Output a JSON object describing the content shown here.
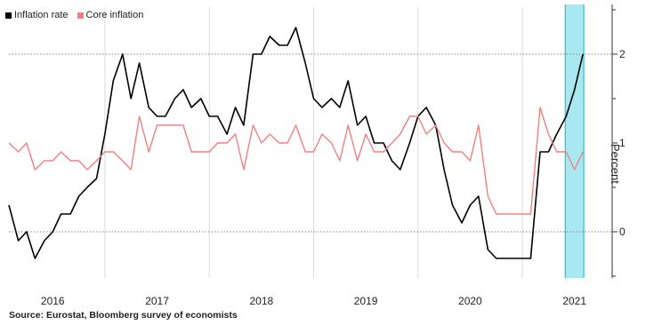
{
  "chart_data": {
    "type": "line",
    "title": "",
    "ylabel": "Percent",
    "xlabel": "",
    "ylim": [
      -0.5,
      2.5
    ],
    "y_ticks": [
      0,
      1,
      2
    ],
    "x_range": [
      2015.58,
      2021.25
    ],
    "x_ticks": [
      {
        "label": "2016",
        "value": 2016.0
      },
      {
        "label": "2017",
        "value": 2017.0
      },
      {
        "label": "2018",
        "value": 2018.0
      },
      {
        "label": "2019",
        "value": 2019.0
      },
      {
        "label": "2020",
        "value": 2020.0
      },
      {
        "label": "2021",
        "value": 2021.0
      }
    ],
    "x_gridlines": [
      2016.5,
      2017.5,
      2018.5,
      2019.5,
      2020.5
    ],
    "dashed_y": [
      0,
      2
    ],
    "forecast_band": {
      "x0": 2020.92,
      "x1": 2021.08,
      "color": "#a8e8f0",
      "border": "#2bbfd0"
    },
    "legend_position": "top-left",
    "series": [
      {
        "name": "Inflation rate",
        "color": "#000000",
        "x": [
          2015.58,
          2015.67,
          2015.75,
          2015.83,
          2015.92,
          2016.0,
          2016.08,
          2016.17,
          2016.25,
          2016.33,
          2016.42,
          2016.5,
          2016.58,
          2016.67,
          2016.75,
          2016.83,
          2016.92,
          2017.0,
          2017.08,
          2017.17,
          2017.25,
          2017.33,
          2017.42,
          2017.5,
          2017.58,
          2017.67,
          2017.75,
          2017.83,
          2017.92,
          2018.0,
          2018.08,
          2018.17,
          2018.25,
          2018.33,
          2018.42,
          2018.5,
          2018.58,
          2018.67,
          2018.75,
          2018.83,
          2018.92,
          2019.0,
          2019.08,
          2019.17,
          2019.25,
          2019.33,
          2019.42,
          2019.5,
          2019.58,
          2019.67,
          2019.75,
          2019.83,
          2019.92,
          2020.0,
          2020.08,
          2020.17,
          2020.25,
          2020.33,
          2020.42,
          2020.5,
          2020.58,
          2020.67,
          2020.75,
          2020.83,
          2020.92,
          2021.0,
          2021.08
        ],
        "values": [
          0.3,
          -0.1,
          0.0,
          -0.3,
          -0.1,
          0.0,
          0.2,
          0.2,
          0.4,
          0.5,
          0.6,
          1.1,
          1.7,
          2.0,
          1.5,
          1.9,
          1.4,
          1.3,
          1.3,
          1.5,
          1.6,
          1.4,
          1.5,
          1.3,
          1.3,
          1.1,
          1.4,
          1.2,
          2.0,
          2.0,
          2.2,
          2.1,
          2.1,
          2.3,
          1.9,
          1.5,
          1.4,
          1.5,
          1.4,
          1.7,
          1.2,
          1.3,
          1.0,
          1.0,
          0.8,
          0.7,
          1.0,
          1.3,
          1.4,
          1.2,
          0.7,
          0.3,
          0.1,
          0.3,
          0.4,
          -0.2,
          -0.3,
          -0.3,
          -0.3,
          -0.3,
          -0.3,
          0.9,
          0.9,
          1.1,
          1.3,
          1.6,
          2.0
        ]
      },
      {
        "name": "Core inflation",
        "color": "#f08080",
        "x": [
          2015.58,
          2015.67,
          2015.75,
          2015.83,
          2015.92,
          2016.0,
          2016.08,
          2016.17,
          2016.25,
          2016.33,
          2016.42,
          2016.5,
          2016.58,
          2016.67,
          2016.75,
          2016.83,
          2016.92,
          2017.0,
          2017.08,
          2017.17,
          2017.25,
          2017.33,
          2017.42,
          2017.5,
          2017.58,
          2017.67,
          2017.75,
          2017.83,
          2017.92,
          2018.0,
          2018.08,
          2018.17,
          2018.25,
          2018.33,
          2018.42,
          2018.5,
          2018.58,
          2018.67,
          2018.75,
          2018.83,
          2018.92,
          2019.0,
          2019.08,
          2019.17,
          2019.25,
          2019.33,
          2019.42,
          2019.5,
          2019.58,
          2019.67,
          2019.75,
          2019.83,
          2019.92,
          2020.0,
          2020.08,
          2020.17,
          2020.25,
          2020.33,
          2020.42,
          2020.5,
          2020.58,
          2020.67,
          2020.75,
          2020.83,
          2020.92,
          2021.0,
          2021.08
        ],
        "values": [
          1.0,
          0.9,
          1.0,
          0.7,
          0.8,
          0.8,
          0.9,
          0.8,
          0.8,
          0.7,
          0.8,
          0.9,
          0.9,
          0.8,
          0.7,
          1.3,
          0.9,
          1.2,
          1.2,
          1.2,
          1.2,
          0.9,
          0.9,
          0.9,
          1.0,
          1.0,
          1.1,
          0.7,
          1.2,
          1.0,
          1.1,
          1.0,
          1.0,
          1.2,
          0.9,
          0.9,
          1.1,
          1.0,
          0.8,
          1.2,
          0.8,
          1.1,
          0.9,
          0.9,
          1.0,
          1.1,
          1.3,
          1.3,
          1.1,
          1.2,
          1.0,
          0.9,
          0.9,
          0.8,
          1.2,
          0.4,
          0.2,
          0.2,
          0.2,
          0.2,
          0.2,
          1.4,
          1.1,
          0.9,
          0.9,
          0.7,
          0.9
        ]
      }
    ]
  },
  "source_text": "Source: Eurostat, Bloomberg survey of economists"
}
